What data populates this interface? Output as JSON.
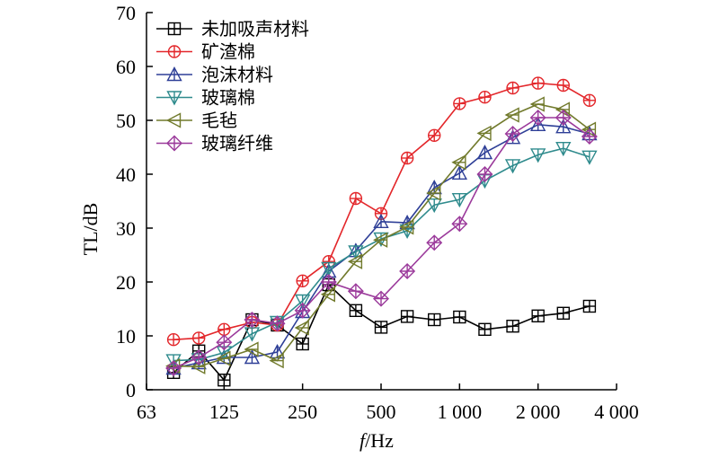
{
  "chart_data": {
    "type": "line",
    "x_scale": "log",
    "x_tick_values": [
      63,
      125,
      250,
      500,
      1000,
      2000,
      4000
    ],
    "x_tick_labels": [
      "63",
      "125",
      "250",
      "500",
      "1 000",
      "2 000",
      "4 000"
    ],
    "ylim": [
      0,
      70
    ],
    "y_ticks": [
      0,
      10,
      20,
      30,
      40,
      50,
      60,
      70
    ],
    "ylabel": "TL/dB",
    "xlabel_italic": "f",
    "xlabel_rest": "/Hz",
    "grid": false,
    "legend_position": "top-left",
    "x": [
      80,
      100,
      125,
      160,
      200,
      250,
      315,
      400,
      500,
      630,
      800,
      1000,
      1250,
      1600,
      2000,
      2500,
      3150
    ],
    "series": [
      {
        "name": "未加吸声材料",
        "color": "#000000",
        "marker": "square-plus",
        "values": [
          3.2,
          7.2,
          1.8,
          13,
          12,
          8.5,
          19.5,
          14.7,
          11.6,
          13.6,
          13,
          13.5,
          11.2,
          11.8,
          13.7,
          14.2,
          15.5
        ]
      },
      {
        "name": "矿渣棉",
        "color": "#e3262a",
        "marker": "circle-plus",
        "values": [
          9.3,
          9.6,
          11.2,
          12.5,
          12,
          20.2,
          23.8,
          35.5,
          32.7,
          43,
          47.2,
          53.1,
          54.3,
          56,
          56.9,
          56.5,
          53.7
        ]
      },
      {
        "name": "泡沫材料",
        "color": "#2e3f97",
        "marker": "triangle-up",
        "values": [
          4,
          5,
          6,
          6,
          7,
          14.5,
          22,
          25.8,
          31.2,
          31,
          37.5,
          40.2,
          44,
          46.8,
          49.2,
          48.8,
          47.5
        ]
      },
      {
        "name": "玻璃棉",
        "color": "#2f8b8d",
        "marker": "triangle-down",
        "values": [
          5.4,
          5.6,
          6.9,
          10.4,
          12.5,
          16.5,
          22.5,
          25.6,
          28,
          29.5,
          34.3,
          35.3,
          38.8,
          41.6,
          43.6,
          44.8,
          43.2
        ]
      },
      {
        "name": "毛毡",
        "color": "#717a2c",
        "marker": "triangle-left",
        "values": [
          4.4,
          4.3,
          5.8,
          7.5,
          5.4,
          11.5,
          17.7,
          23.8,
          27.8,
          30.2,
          36.5,
          42.2,
          47.6,
          51,
          53,
          52,
          48.3
        ]
      },
      {
        "name": "玻璃纤维",
        "color": "#9b3a9b",
        "marker": "diamond-plus",
        "values": [
          4,
          6,
          8.8,
          13,
          12.3,
          14.7,
          20,
          18.3,
          16.9,
          22,
          27.3,
          30.8,
          40,
          47.5,
          50.5,
          50.5,
          47
        ]
      }
    ]
  }
}
